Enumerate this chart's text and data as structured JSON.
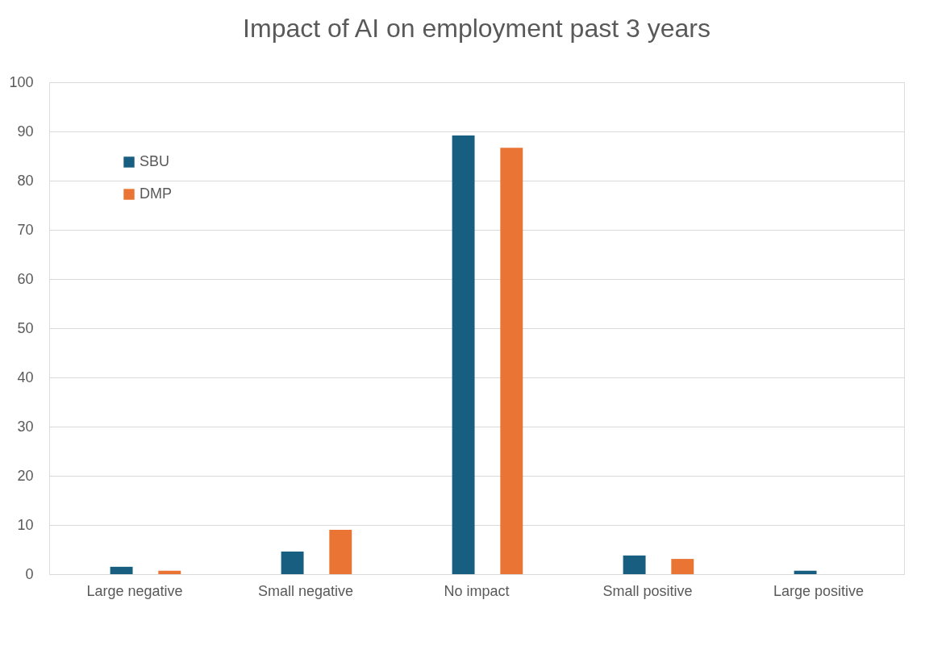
{
  "chart_data": {
    "type": "bar",
    "title": "Impact of AI on employment past 3 years",
    "categories": [
      "Large negative",
      "Small negative",
      "No impact",
      "Small positive",
      "Large positive"
    ],
    "series": [
      {
        "name": "SBU",
        "color": "#175e80",
        "values": [
          1.5,
          4.6,
          89.2,
          3.8,
          0.7
        ]
      },
      {
        "name": "DMP",
        "color": "#e97434",
        "values": [
          0.7,
          9.0,
          86.7,
          3.1,
          0
        ]
      }
    ],
    "ylim": [
      0,
      100
    ],
    "yticks": [
      0,
      10,
      20,
      30,
      40,
      50,
      60,
      70,
      80,
      90,
      100
    ],
    "grid": "y",
    "legend": "top left"
  }
}
